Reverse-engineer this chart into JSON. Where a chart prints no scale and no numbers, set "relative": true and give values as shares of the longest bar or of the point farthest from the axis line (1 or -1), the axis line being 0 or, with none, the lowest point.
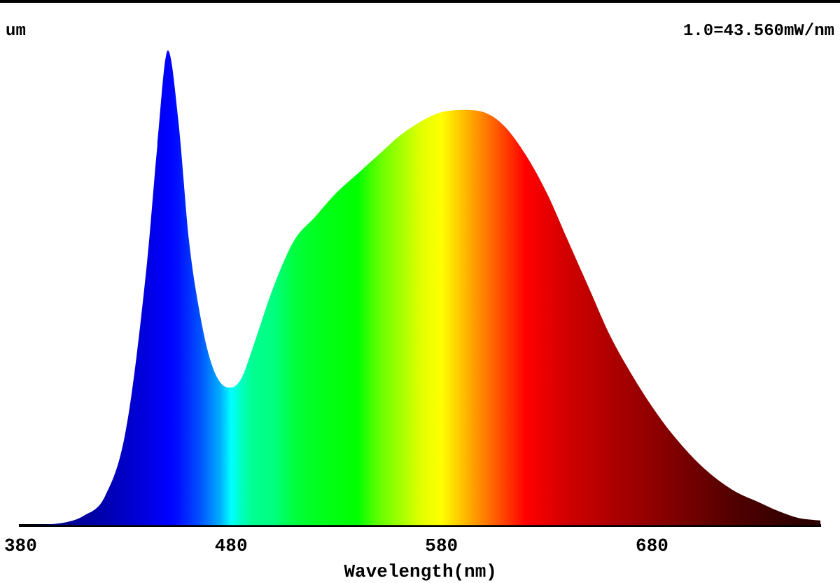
{
  "chart_data": {
    "type": "area",
    "relative": true,
    "xlabel": "Wavelength(nm)",
    "xlim": [
      380,
      760
    ],
    "xticks": [
      380,
      480,
      580,
      680
    ],
    "annotations": [
      "um",
      "1.0=43.560mW/nm"
    ],
    "x": [
      380,
      400,
      410,
      420,
      430,
      440,
      445,
      450,
      455,
      460,
      465,
      470,
      475,
      480,
      485,
      490,
      500,
      510,
      520,
      530,
      540,
      550,
      560,
      570,
      580,
      590,
      600,
      610,
      620,
      630,
      640,
      650,
      660,
      670,
      680,
      690,
      700,
      710,
      720,
      730,
      740,
      750,
      760
    ],
    "series": [
      {
        "values": [
          0,
          0.005,
          0.02,
          0.06,
          0.2,
          0.55,
          0.8,
          1.0,
          0.85,
          0.6,
          0.45,
          0.35,
          0.3,
          0.29,
          0.31,
          0.37,
          0.5,
          0.6,
          0.65,
          0.7,
          0.74,
          0.78,
          0.82,
          0.85,
          0.87,
          0.875,
          0.87,
          0.84,
          0.78,
          0.7,
          0.6,
          0.5,
          0.4,
          0.32,
          0.25,
          0.19,
          0.14,
          0.1,
          0.07,
          0.05,
          0.03,
          0.015,
          0.01
        ],
        "colors": [
          "#000080",
          "#000090",
          "#0000a0",
          "#0000b0",
          "#0000c8",
          "#0000e0",
          "#0000f0",
          "#0000ff",
          "#0010ff",
          "#0030ff",
          "#0050ff",
          "#0080ff",
          "#00b0ff",
          "#00ffff",
          "#00ffc0",
          "#00ff90",
          "#00ff80",
          "#00ff40",
          "#00ff20",
          "#00ff10",
          "#00ff00",
          "#60ff00",
          "#a0ff00",
          "#e0ff00",
          "#ffff00",
          "#ffc000",
          "#ff8000",
          "#ff4000",
          "#ff0000",
          "#e80000",
          "#d00000",
          "#c00000",
          "#b00000",
          "#a00000",
          "#900000",
          "#800000",
          "#700000",
          "#600000",
          "#500000",
          "#450000",
          "#380000",
          "#300000",
          "#280000"
        ]
      }
    ],
    "grid": false,
    "legend": false
  }
}
